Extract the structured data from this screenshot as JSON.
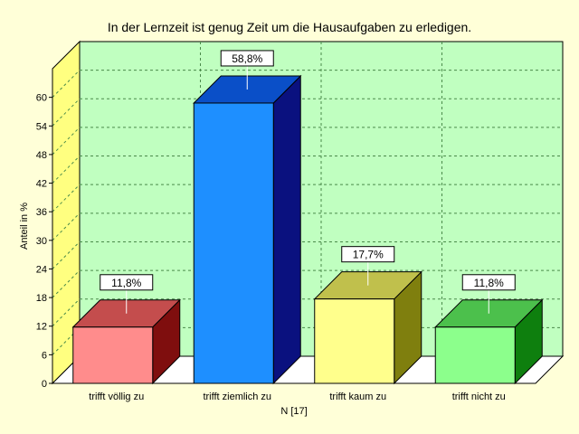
{
  "chart_data": {
    "type": "bar",
    "title": "In der Lernzeit ist genug Zeit um die Hausaufgaben zu erledigen.",
    "xlabel": "N [17]",
    "ylabel": "Anteil in %",
    "categories": [
      "trifft völlig zu",
      "trifft ziemlich zu",
      "trifft kaum zu",
      "trifft nicht zu"
    ],
    "values": [
      11.8,
      58.8,
      17.7,
      11.8
    ],
    "data_labels": [
      "11,8%",
      "58,8%",
      "17,7%",
      "11,8%"
    ],
    "ylim": [
      0,
      66
    ],
    "yticks": [
      "0",
      "6",
      "12",
      "18",
      "24",
      "30",
      "36",
      "42",
      "48",
      "54",
      "60"
    ],
    "grid": true,
    "bar_colors": [
      {
        "front": "#ff8c8c",
        "side": "#7f0e0e",
        "top": "#c44d4d"
      },
      {
        "front": "#1e8fff",
        "side": "#0a117f",
        "top": "#0a4fc8"
      },
      {
        "front": "#ffff8c",
        "side": "#7f7f0e",
        "top": "#c0c04c"
      },
      {
        "front": "#8cff8c",
        "side": "#0e7f0e",
        "top": "#4cc04c"
      }
    ],
    "colors": {
      "background": "#ffffd8",
      "wall": "#c0ffc0",
      "side_wall": "#ffff80",
      "grid": "#4a8a4a"
    }
  }
}
